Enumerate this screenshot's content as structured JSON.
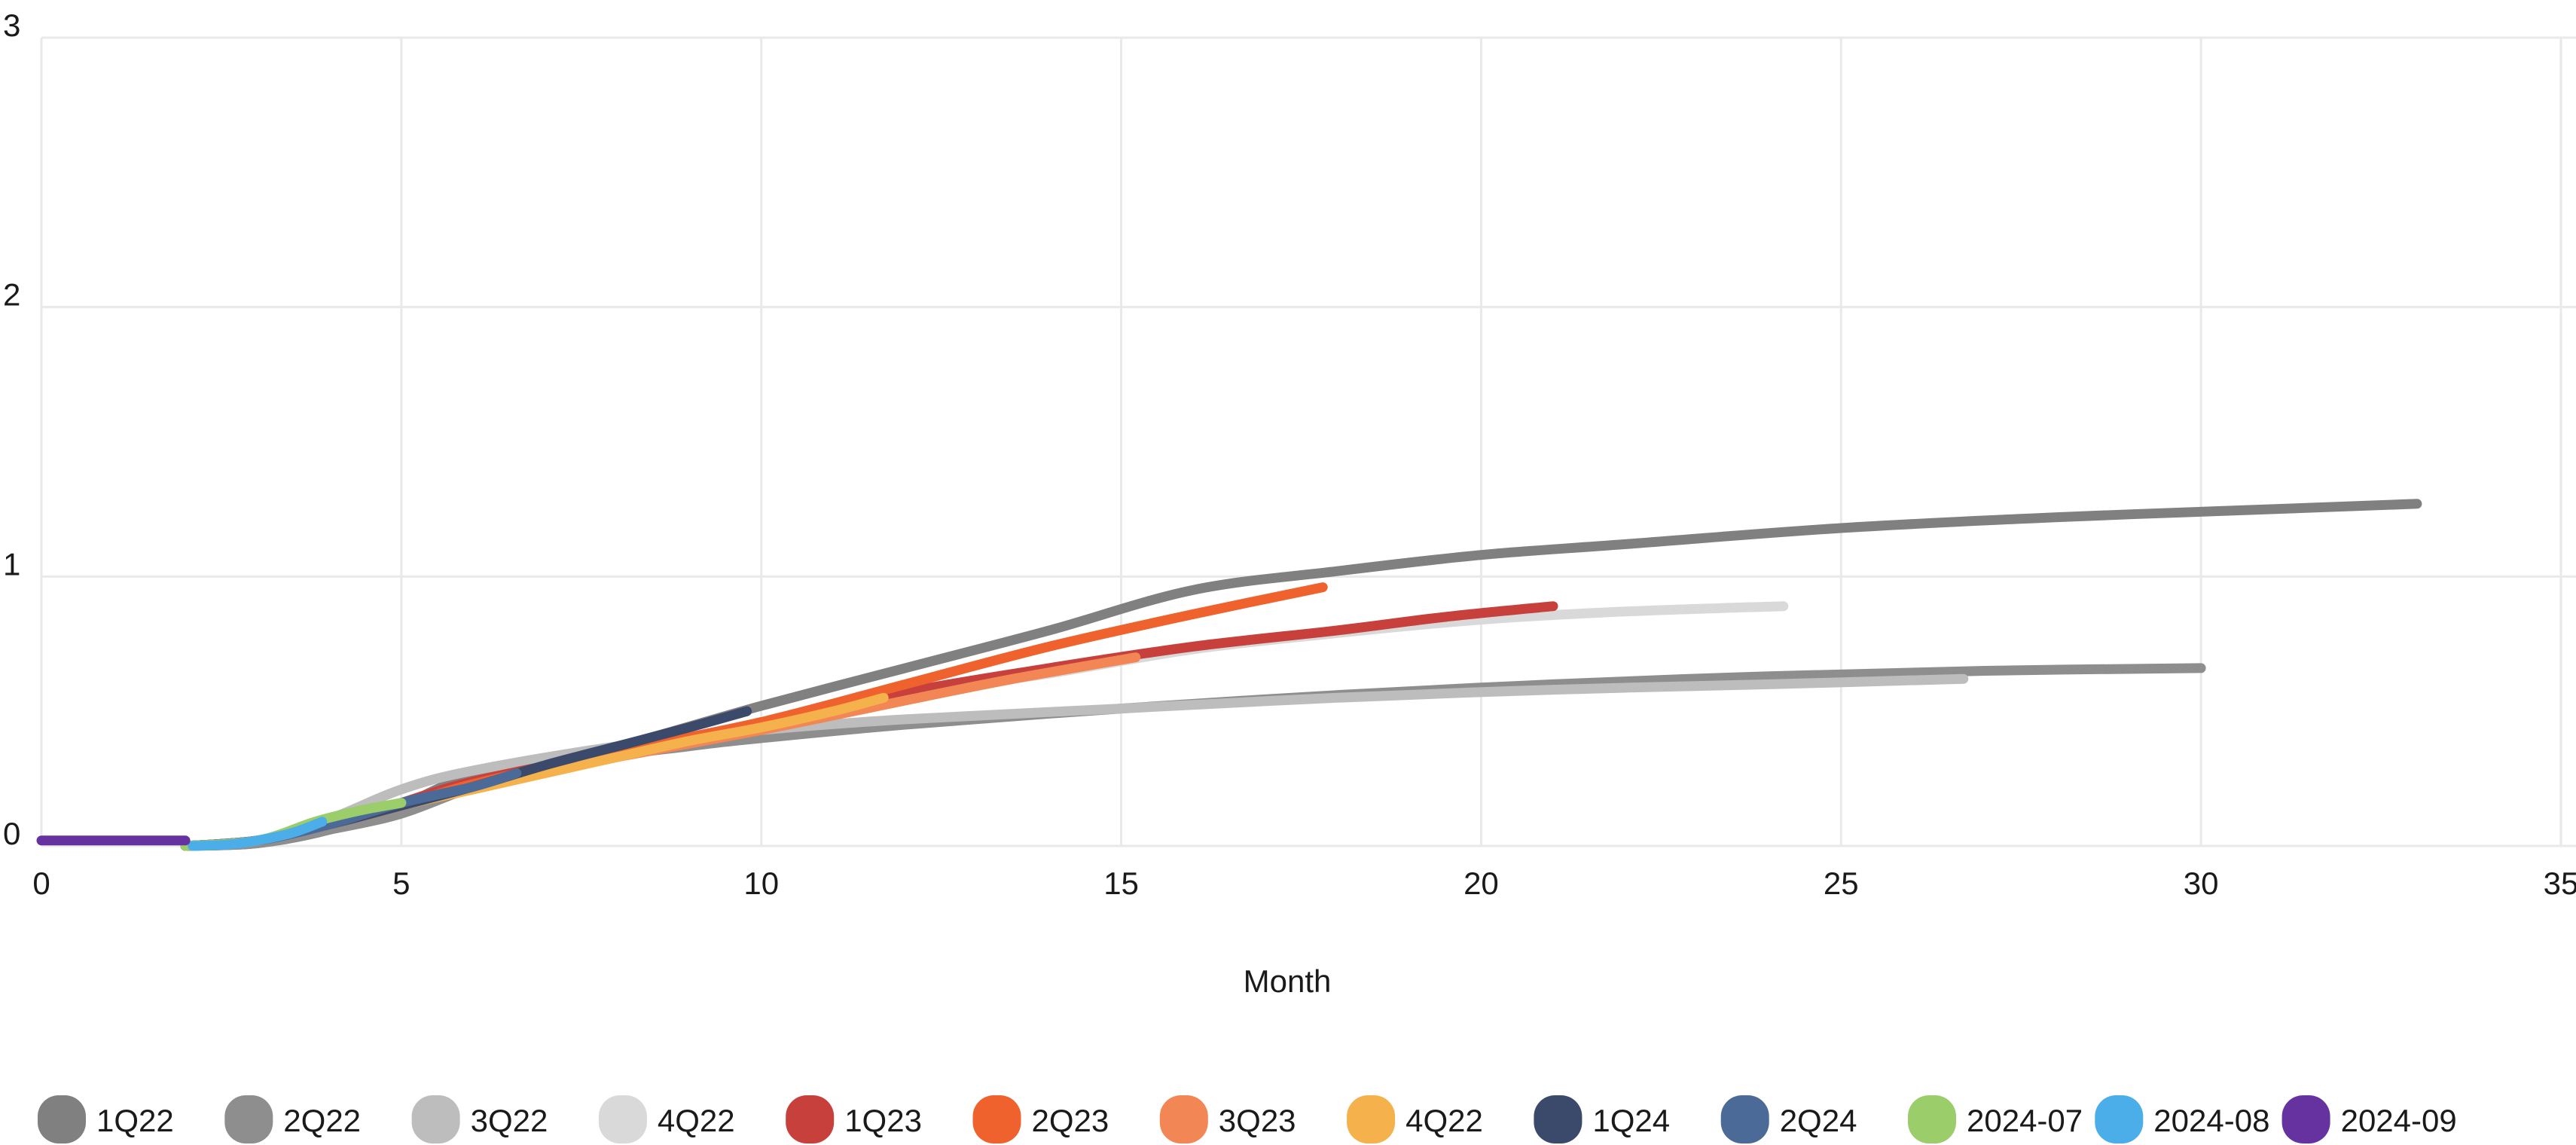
{
  "chart_data": {
    "type": "line",
    "title": "",
    "xlabel": "Month",
    "ylabel": "",
    "xlim": [
      0,
      35
    ],
    "ylim": [
      0,
      3
    ],
    "x_ticks": [
      "0",
      "5",
      "10",
      "15",
      "20",
      "25",
      "30",
      "35"
    ],
    "y_ticks": [
      "0",
      "1",
      "2",
      "3"
    ],
    "grid": true,
    "legend_position": "bottom",
    "series": [
      {
        "name": "1Q22",
        "color": "#808080",
        "points": [
          [
            2,
            0
          ],
          [
            3,
            0.01
          ],
          [
            4,
            0.06
          ],
          [
            5,
            0.15
          ],
          [
            6,
            0.26
          ],
          [
            8,
            0.37
          ],
          [
            10,
            0.52
          ],
          [
            12,
            0.66
          ],
          [
            14,
            0.8
          ],
          [
            16,
            0.95
          ],
          [
            18,
            1.02
          ],
          [
            20,
            1.08
          ],
          [
            22,
            1.12
          ],
          [
            25,
            1.18
          ],
          [
            28,
            1.22
          ],
          [
            31,
            1.25
          ],
          [
            33,
            1.27
          ]
        ]
      },
      {
        "name": "2Q22",
        "color": "#8e8e8e",
        "points": [
          [
            2,
            0
          ],
          [
            3,
            0.01
          ],
          [
            4,
            0.06
          ],
          [
            5,
            0.12
          ],
          [
            6,
            0.22
          ],
          [
            7,
            0.3
          ],
          [
            9,
            0.37
          ],
          [
            10,
            0.4
          ],
          [
            12,
            0.45
          ],
          [
            15,
            0.51
          ],
          [
            18,
            0.56
          ],
          [
            21,
            0.6
          ],
          [
            24,
            0.63
          ],
          [
            27,
            0.65
          ],
          [
            30,
            0.66
          ]
        ]
      },
      {
        "name": "3Q22",
        "color": "#bdbdbd",
        "points": [
          [
            2,
            0
          ],
          [
            3,
            0.02
          ],
          [
            4,
            0.1
          ],
          [
            5,
            0.21
          ],
          [
            6,
            0.28
          ],
          [
            8,
            0.37
          ],
          [
            10,
            0.43
          ],
          [
            12,
            0.47
          ],
          [
            15,
            0.51
          ],
          [
            18,
            0.55
          ],
          [
            21,
            0.58
          ],
          [
            24,
            0.6
          ],
          [
            26.7,
            0.62
          ]
        ]
      },
      {
        "name": "4Q22",
        "color": "#d9d9d9",
        "points": [
          [
            2,
            0
          ],
          [
            3,
            0.02
          ],
          [
            4,
            0.08
          ],
          [
            5,
            0.16
          ],
          [
            6,
            0.24
          ],
          [
            8,
            0.35
          ],
          [
            10,
            0.45
          ],
          [
            12,
            0.56
          ],
          [
            14,
            0.64
          ],
          [
            16,
            0.73
          ],
          [
            18,
            0.79
          ],
          [
            20,
            0.84
          ],
          [
            22,
            0.87
          ],
          [
            24.2,
            0.89
          ]
        ]
      },
      {
        "name": "1Q23",
        "color": "#c8403c",
        "points": [
          [
            2,
            0
          ],
          [
            3,
            0.02
          ],
          [
            4,
            0.08
          ],
          [
            5,
            0.16
          ],
          [
            6,
            0.24
          ],
          [
            8,
            0.35
          ],
          [
            10,
            0.45
          ],
          [
            12,
            0.57
          ],
          [
            14,
            0.66
          ],
          [
            16,
            0.74
          ],
          [
            18,
            0.8
          ],
          [
            19.5,
            0.85
          ],
          [
            21,
            0.89
          ]
        ]
      },
      {
        "name": "2Q23",
        "color": "#ef622d",
        "points": [
          [
            2,
            0
          ],
          [
            3,
            0.02
          ],
          [
            4,
            0.08
          ],
          [
            5,
            0.15
          ],
          [
            6,
            0.23
          ],
          [
            8,
            0.35
          ],
          [
            10,
            0.46
          ],
          [
            12,
            0.6
          ],
          [
            14,
            0.74
          ],
          [
            16,
            0.86
          ],
          [
            17.8,
            0.96
          ]
        ]
      },
      {
        "name": "3Q23",
        "color": "#f28655",
        "points": [
          [
            2,
            0
          ],
          [
            3,
            0.02
          ],
          [
            4,
            0.08
          ],
          [
            5,
            0.15
          ],
          [
            6,
            0.22
          ],
          [
            8,
            0.33
          ],
          [
            10,
            0.43
          ],
          [
            12,
            0.54
          ],
          [
            13.5,
            0.62
          ],
          [
            15.2,
            0.7
          ]
        ]
      },
      {
        "name": "4Q22",
        "color": "#f5b14c",
        "points": [
          [
            2,
            0
          ],
          [
            3,
            0.02
          ],
          [
            4,
            0.08
          ],
          [
            5,
            0.15
          ],
          [
            6,
            0.21
          ],
          [
            7,
            0.27
          ],
          [
            8,
            0.33
          ],
          [
            9,
            0.39
          ],
          [
            10,
            0.44
          ],
          [
            11,
            0.5
          ],
          [
            11.7,
            0.55
          ]
        ]
      },
      {
        "name": "1Q24",
        "color": "#3b4a6b",
        "points": [
          [
            2,
            0
          ],
          [
            3,
            0.02
          ],
          [
            4,
            0.08
          ],
          [
            5,
            0.15
          ],
          [
            6,
            0.22
          ],
          [
            7,
            0.3
          ],
          [
            8,
            0.37
          ],
          [
            9,
            0.44
          ],
          [
            9.8,
            0.5
          ]
        ]
      },
      {
        "name": "2Q24",
        "color": "#4c6a98",
        "points": [
          [
            2,
            0
          ],
          [
            3,
            0.02
          ],
          [
            4,
            0.08
          ],
          [
            5,
            0.16
          ],
          [
            6,
            0.22
          ],
          [
            6.6,
            0.27
          ]
        ]
      },
      {
        "name": "2024-07",
        "color": "#9bcd6a",
        "points": [
          [
            2,
            0
          ],
          [
            3,
            0.02
          ],
          [
            3.8,
            0.09
          ],
          [
            4.4,
            0.13
          ],
          [
            5,
            0.16
          ]
        ]
      },
      {
        "name": "2024-08",
        "color": "#4baee8",
        "points": [
          [
            2.1,
            0
          ],
          [
            2.6,
            0.005
          ],
          [
            3,
            0.02
          ],
          [
            3.5,
            0.05
          ],
          [
            3.9,
            0.09
          ]
        ]
      },
      {
        "name": "2024-09",
        "color": "#6632a0",
        "points": [
          [
            0,
            0.02
          ],
          [
            2,
            0.02
          ]
        ]
      }
    ]
  }
}
